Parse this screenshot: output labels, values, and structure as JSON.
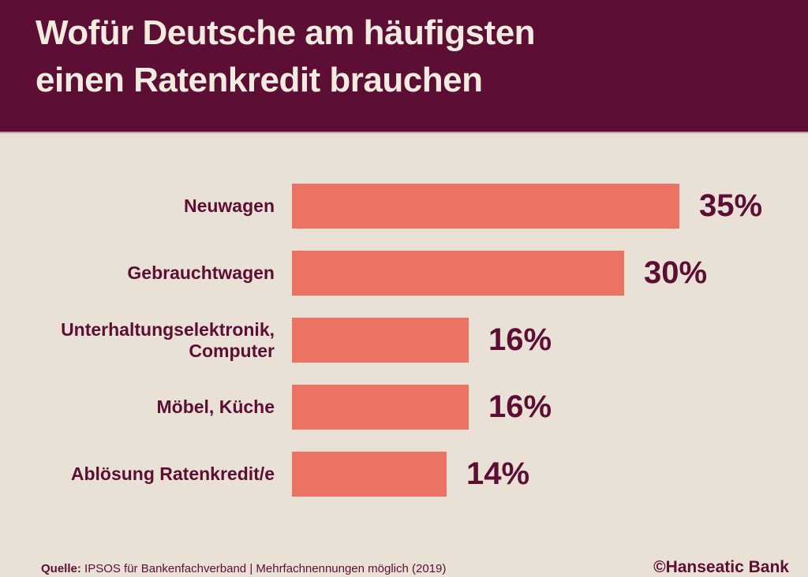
{
  "header": {
    "title_lines": [
      "Wofür Deutsche am häufigsten",
      "einen Ratenkredit brauchen"
    ]
  },
  "chart_data": {
    "type": "bar",
    "orientation": "horizontal",
    "title": "Wofür Deutsche am häufigsten einen Ratenkredit brauchen",
    "categories": [
      "Neuwagen",
      "Gebrauchtwagen",
      "Unterhaltungselektronik, Computer",
      "Möbel, Küche",
      "Ablösung Ratenkredit/e"
    ],
    "values": [
      35,
      30,
      16,
      16,
      14
    ],
    "value_labels": [
      "35%",
      "30%",
      "16%",
      "16%",
      "14%"
    ],
    "unit": "%",
    "xlim": [
      0,
      35
    ],
    "grid": false,
    "legend": false,
    "colors": {
      "bar": "#EB7364",
      "category_label": "#5C0E34",
      "value_label": "#5C0E34"
    }
  },
  "footer": {
    "source_prefix": "Quelle:",
    "source_text": "IPSOS für Bankenfachverband | Mehrfachnennungen möglich (2019)",
    "copyright": "©Hanseatic Bank"
  },
  "colors": {
    "header_bg": "#5C0E34",
    "body_bg": "#E9E1D6",
    "title_text": "#F2EBDF"
  }
}
